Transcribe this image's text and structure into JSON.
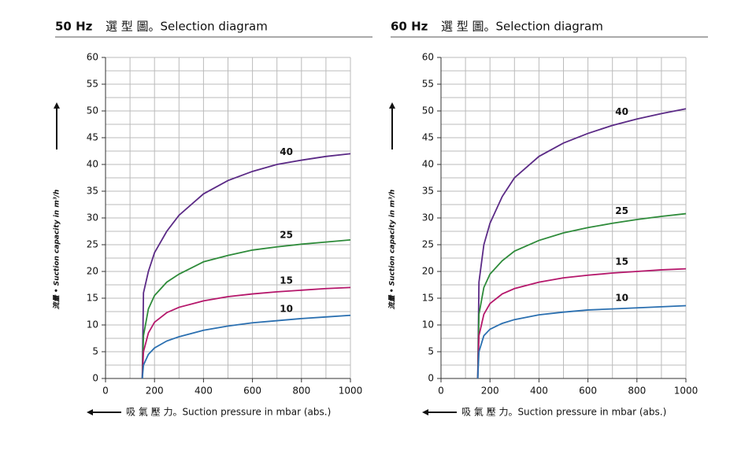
{
  "chart_data": [
    {
      "type": "line",
      "title": "50 Hz",
      "subtitle": "選 型 圖。Selection diagram",
      "x_label": "吸 氣 壓 力。Suction pressure in mbar (abs.)",
      "y_label": "流量 • Suction capacity in m³/h",
      "x": [
        150,
        155,
        175,
        200,
        250,
        300,
        400,
        500,
        600,
        700,
        800,
        900,
        1000
      ],
      "series": [
        {
          "name": "40",
          "color": "#5b2a86",
          "values": [
            0,
            16,
            20,
            23.5,
            27.5,
            30.5,
            34.5,
            37,
            38.7,
            40,
            40.8,
            41.5,
            42
          ]
        },
        {
          "name": "25",
          "color": "#2e8b3a",
          "values": [
            0,
            8,
            13,
            15.5,
            18,
            19.5,
            21.8,
            23,
            24,
            24.6,
            25.1,
            25.5,
            25.9
          ]
        },
        {
          "name": "15",
          "color": "#b5176b",
          "values": [
            0,
            5,
            8.5,
            10.5,
            12.3,
            13.3,
            14.5,
            15.3,
            15.8,
            16.2,
            16.5,
            16.8,
            17
          ]
        },
        {
          "name": "10",
          "color": "#2a6fb0",
          "values": [
            0,
            2.5,
            4.5,
            5.7,
            7,
            7.8,
            9,
            9.8,
            10.4,
            10.8,
            11.2,
            11.5,
            11.8
          ]
        }
      ],
      "xlim": [
        0,
        1000
      ],
      "xticks": [
        0,
        200,
        400,
        600,
        800,
        1000
      ],
      "xgrid_minor": [
        100,
        300,
        500,
        700,
        900
      ],
      "ylim": [
        0,
        60
      ],
      "yticks": [
        0,
        5,
        10,
        15,
        20,
        25,
        30,
        35,
        40,
        45,
        50,
        55,
        60
      ],
      "ygrid_minor": [
        2.5,
        7.5,
        12.5,
        17.5,
        22.5,
        27.5,
        32.5,
        37.5,
        42.5,
        47.5,
        52.5,
        57.5
      ],
      "grid": true
    },
    {
      "type": "line",
      "title": "60 Hz",
      "subtitle": "選 型 圖。Selection diagram",
      "x_label": "吸 氣 壓 力。Suction pressure in mbar (abs.)",
      "y_label": "流量 • Suction capacity in m³/h",
      "x": [
        150,
        155,
        175,
        200,
        250,
        300,
        400,
        500,
        600,
        700,
        800,
        900,
        1000
      ],
      "series": [
        {
          "name": "40",
          "color": "#5b2a86",
          "values": [
            0,
            18,
            25,
            29,
            34,
            37.5,
            41.5,
            44,
            45.8,
            47.3,
            48.5,
            49.5,
            50.4
          ]
        },
        {
          "name": "25",
          "color": "#2e8b3a",
          "values": [
            0,
            12,
            17,
            19.5,
            22,
            23.8,
            25.8,
            27.2,
            28.2,
            29,
            29.7,
            30.3,
            30.8
          ]
        },
        {
          "name": "15",
          "color": "#b5176b",
          "values": [
            0,
            8,
            12,
            14,
            15.8,
            16.8,
            18,
            18.8,
            19.3,
            19.7,
            20,
            20.3,
            20.5
          ]
        },
        {
          "name": "10",
          "color": "#2a6fb0",
          "values": [
            0,
            5,
            8,
            9.2,
            10.3,
            11,
            11.9,
            12.4,
            12.8,
            13,
            13.2,
            13.4,
            13.6
          ]
        }
      ],
      "xlim": [
        0,
        1000
      ],
      "xticks": [
        0,
        200,
        400,
        600,
        800,
        1000
      ],
      "xgrid_minor": [
        100,
        300,
        500,
        700,
        900
      ],
      "ylim": [
        0,
        60
      ],
      "yticks": [
        0,
        5,
        10,
        15,
        20,
        25,
        30,
        35,
        40,
        45,
        50,
        55,
        60
      ],
      "ygrid_minor": [
        2.5,
        7.5,
        12.5,
        17.5,
        22.5,
        27.5,
        32.5,
        37.5,
        42.5,
        47.5,
        52.5,
        57.5
      ],
      "grid": true
    }
  ]
}
